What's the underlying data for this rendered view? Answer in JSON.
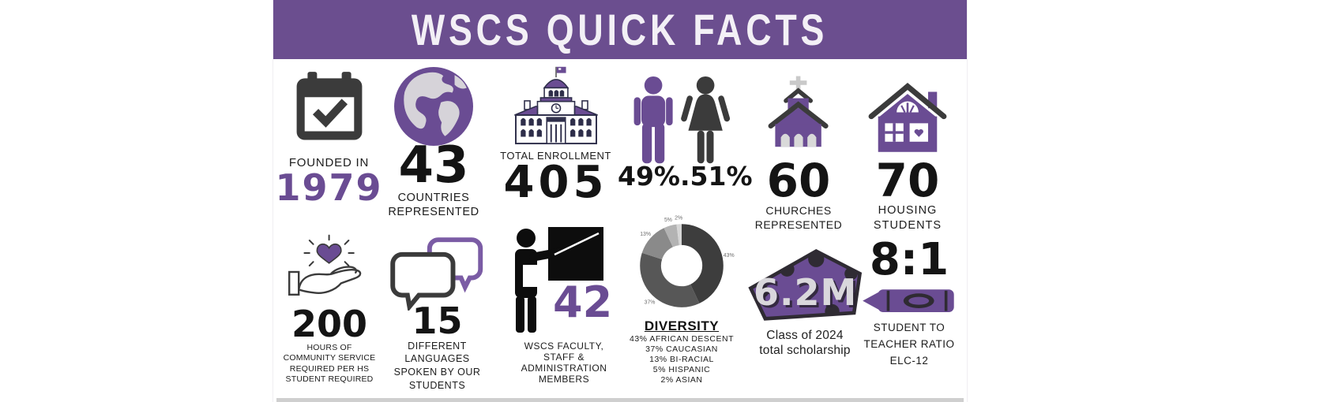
{
  "banner": {
    "title": "WSCS QUICK FACTS",
    "bg_color": "#6b4e8f",
    "text_color": "#f3f0f6"
  },
  "colors": {
    "accent_purple": "#6a4c93",
    "dark_charcoal": "#3b3b3b",
    "black": "#141414",
    "money_text": "#d9d7dc"
  },
  "facts": {
    "founded": {
      "label": "FOUNDED IN",
      "value": "1979"
    },
    "countries": {
      "value": "43",
      "label_lines": [
        "COUNTRIES",
        "REPRESENTED"
      ]
    },
    "enrollment": {
      "label": "TOTAL ENROLLMENT",
      "value": "405"
    },
    "gender": {
      "value": "49%.51%"
    },
    "churches": {
      "value": "60",
      "label_lines": [
        "CHURCHES",
        "REPRESENTED"
      ]
    },
    "housing": {
      "value": "70",
      "label_lines": [
        "HOUSING",
        "STUDENTS"
      ]
    },
    "service": {
      "value": "200",
      "label_lines": [
        "HOURS OF",
        "COMMUNITY SERVICE",
        "REQUIRED PER HS",
        "STUDENT REQUIRED"
      ]
    },
    "languages": {
      "value": "15",
      "label_lines": [
        "DIFFERENT",
        "LANGUAGES",
        "SPOKEN BY OUR",
        "STUDENTS"
      ]
    },
    "faculty": {
      "value": "42",
      "label_lines": [
        "WSCS FACULTY,",
        "STAFF &",
        "ADMINISTRATION",
        "MEMBERS"
      ]
    },
    "diversity": {
      "title": "DIVERSITY",
      "breakdown_lines": [
        "43% AFRICAN DESCENT",
        "37% CAUCASIAN",
        "13% BI-RACIAL",
        "5% HISPANIC",
        "2% ASIAN"
      ]
    },
    "scholarship": {
      "value": "6.2M",
      "label_lines": [
        "Class of 2024",
        "total scholarship"
      ]
    },
    "ratio": {
      "value": "8:1",
      "label_lines": [
        "STUDENT TO",
        "TEACHER RATIO",
        "ELC-12"
      ]
    }
  },
  "chart_data": {
    "type": "pie",
    "donut": true,
    "title": "DIVERSITY",
    "labels": [
      "AFRICAN DESCENT",
      "CAUCASIAN",
      "BI-RACIAL",
      "HISPANIC",
      "ASIAN"
    ],
    "values": [
      43,
      37,
      13,
      5,
      2
    ],
    "slice_labels": [
      "43%",
      "37%",
      "13%",
      "5%",
      "2%"
    ],
    "colors": [
      "#3d3d3d",
      "#575757",
      "#8a8a8a",
      "#b3b3b3",
      "#d6d6d6"
    ],
    "legend_position": "text-list-below"
  }
}
